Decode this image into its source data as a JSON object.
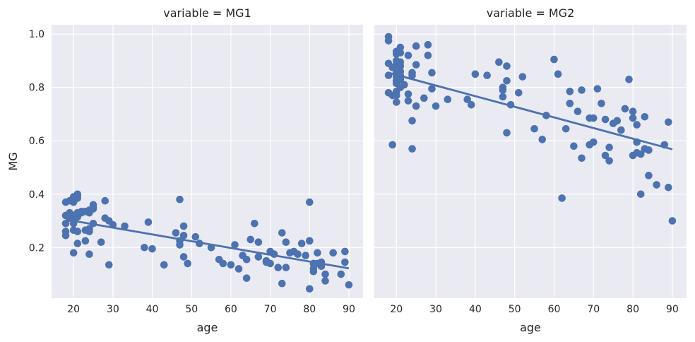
{
  "chart_data": {
    "type": "scatter",
    "ylabel": "MG",
    "xlim": [
      14.4,
      93.6
    ],
    "ylim": [
      0.01,
      1.035
    ],
    "grid": true,
    "color": "#4c72b0",
    "background": "#eaeaf2",
    "xticks": [
      20,
      30,
      40,
      50,
      60,
      70,
      80,
      90
    ],
    "yticks": [
      0.2,
      0.4,
      0.6,
      0.8,
      1.0
    ],
    "ytick_labels": [
      "0.2",
      "0.4",
      "0.6",
      "0.8",
      "1.0"
    ],
    "panels": [
      {
        "title": "variable = MG1",
        "xlabel": "age",
        "regression": [
          [
            18,
            0.305
          ],
          [
            90,
            0.122
          ]
        ],
        "points": [
          [
            18,
            0.37
          ],
          [
            18,
            0.32
          ],
          [
            18,
            0.29
          ],
          [
            18,
            0.26
          ],
          [
            18,
            0.245
          ],
          [
            19,
            0.33
          ],
          [
            19,
            0.31
          ],
          [
            19,
            0.375
          ],
          [
            20,
            0.39
          ],
          [
            20,
            0.37
          ],
          [
            20,
            0.32
          ],
          [
            20,
            0.3
          ],
          [
            20,
            0.29
          ],
          [
            20,
            0.265
          ],
          [
            20,
            0.18
          ],
          [
            21,
            0.4
          ],
          [
            21,
            0.395
          ],
          [
            21,
            0.385
          ],
          [
            21,
            0.33
          ],
          [
            21,
            0.315
          ],
          [
            21,
            0.26
          ],
          [
            21,
            0.215
          ],
          [
            22,
            0.335
          ],
          [
            22,
            0.33
          ],
          [
            23,
            0.335
          ],
          [
            23,
            0.265
          ],
          [
            23,
            0.225
          ],
          [
            24,
            0.34
          ],
          [
            24,
            0.33
          ],
          [
            24,
            0.27
          ],
          [
            24,
            0.26
          ],
          [
            24,
            0.175
          ],
          [
            25,
            0.36
          ],
          [
            25,
            0.35
          ],
          [
            25,
            0.345
          ],
          [
            25,
            0.29
          ],
          [
            27,
            0.22
          ],
          [
            28,
            0.375
          ],
          [
            28,
            0.31
          ],
          [
            29,
            0.3
          ],
          [
            29,
            0.135
          ],
          [
            30,
            0.285
          ],
          [
            33,
            0.28
          ],
          [
            38,
            0.2
          ],
          [
            39,
            0.295
          ],
          [
            40,
            0.195
          ],
          [
            43,
            0.135
          ],
          [
            46,
            0.255
          ],
          [
            47,
            0.38
          ],
          [
            47,
            0.225
          ],
          [
            47,
            0.21
          ],
          [
            48,
            0.28
          ],
          [
            48,
            0.245
          ],
          [
            48,
            0.165
          ],
          [
            49,
            0.14
          ],
          [
            51,
            0.24
          ],
          [
            52,
            0.215
          ],
          [
            55,
            0.2
          ],
          [
            57,
            0.155
          ],
          [
            58,
            0.14
          ],
          [
            60,
            0.135
          ],
          [
            61,
            0.21
          ],
          [
            62,
            0.12
          ],
          [
            63,
            0.17
          ],
          [
            64,
            0.155
          ],
          [
            64,
            0.085
          ],
          [
            65,
            0.23
          ],
          [
            66,
            0.29
          ],
          [
            67,
            0.22
          ],
          [
            67,
            0.165
          ],
          [
            69,
            0.15
          ],
          [
            69,
            0.145
          ],
          [
            70,
            0.185
          ],
          [
            70,
            0.14
          ],
          [
            71,
            0.175
          ],
          [
            72,
            0.125
          ],
          [
            73,
            0.255
          ],
          [
            73,
            0.065
          ],
          [
            74,
            0.22
          ],
          [
            74,
            0.125
          ],
          [
            75,
            0.18
          ],
          [
            76,
            0.185
          ],
          [
            77,
            0.175
          ],
          [
            78,
            0.215
          ],
          [
            79,
            0.17
          ],
          [
            80,
            0.37
          ],
          [
            80,
            0.225
          ],
          [
            80,
            0.045
          ],
          [
            81,
            0.14
          ],
          [
            81,
            0.12
          ],
          [
            81,
            0.11
          ],
          [
            82,
            0.18
          ],
          [
            82,
            0.14
          ],
          [
            83,
            0.145
          ],
          [
            83,
            0.13
          ],
          [
            84,
            0.1
          ],
          [
            84,
            0.075
          ],
          [
            86,
            0.18
          ],
          [
            88,
            0.1
          ],
          [
            89,
            0.185
          ],
          [
            89,
            0.145
          ],
          [
            90,
            0.06
          ]
        ]
      },
      {
        "title": "variable = MG2",
        "xlabel": "age",
        "regression": [
          [
            18,
            0.855
          ],
          [
            90,
            0.568
          ]
        ],
        "points": [
          [
            18,
            0.99
          ],
          [
            18,
            0.975
          ],
          [
            18,
            0.89
          ],
          [
            18,
            0.845
          ],
          [
            18,
            0.78
          ],
          [
            19,
            0.875
          ],
          [
            19,
            0.77
          ],
          [
            19,
            0.585
          ],
          [
            20,
            0.935
          ],
          [
            20,
            0.925
          ],
          [
            20,
            0.9
          ],
          [
            20,
            0.885
          ],
          [
            20,
            0.87
          ],
          [
            20,
            0.855
          ],
          [
            20,
            0.84
          ],
          [
            20,
            0.825
          ],
          [
            20,
            0.815
          ],
          [
            20,
            0.785
          ],
          [
            20,
            0.77
          ],
          [
            20,
            0.745
          ],
          [
            21,
            0.95
          ],
          [
            21,
            0.93
          ],
          [
            21,
            0.895
          ],
          [
            21,
            0.88
          ],
          [
            21,
            0.86
          ],
          [
            21,
            0.845
          ],
          [
            21,
            0.83
          ],
          [
            21,
            0.8
          ],
          [
            22,
            0.81
          ],
          [
            23,
            0.92
          ],
          [
            23,
            0.775
          ],
          [
            23,
            0.75
          ],
          [
            24,
            0.855
          ],
          [
            24,
            0.845
          ],
          [
            24,
            0.675
          ],
          [
            24,
            0.57
          ],
          [
            25,
            0.955
          ],
          [
            25,
            0.885
          ],
          [
            25,
            0.73
          ],
          [
            27,
            0.76
          ],
          [
            28,
            0.96
          ],
          [
            28,
            0.92
          ],
          [
            29,
            0.855
          ],
          [
            29,
            0.795
          ],
          [
            30,
            0.73
          ],
          [
            33,
            0.755
          ],
          [
            38,
            0.755
          ],
          [
            39,
            0.735
          ],
          [
            40,
            0.85
          ],
          [
            43,
            0.845
          ],
          [
            46,
            0.895
          ],
          [
            47,
            0.8
          ],
          [
            47,
            0.79
          ],
          [
            47,
            0.765
          ],
          [
            48,
            0.88
          ],
          [
            48,
            0.825
          ],
          [
            48,
            0.63
          ],
          [
            49,
            0.735
          ],
          [
            51,
            0.78
          ],
          [
            52,
            0.84
          ],
          [
            55,
            0.645
          ],
          [
            57,
            0.605
          ],
          [
            58,
            0.695
          ],
          [
            60,
            0.905
          ],
          [
            61,
            0.85
          ],
          [
            62,
            0.385
          ],
          [
            63,
            0.645
          ],
          [
            64,
            0.785
          ],
          [
            64,
            0.74
          ],
          [
            65,
            0.58
          ],
          [
            66,
            0.71
          ],
          [
            67,
            0.79
          ],
          [
            67,
            0.535
          ],
          [
            69,
            0.685
          ],
          [
            69,
            0.585
          ],
          [
            70,
            0.685
          ],
          [
            70,
            0.595
          ],
          [
            71,
            0.795
          ],
          [
            72,
            0.74
          ],
          [
            73,
            0.68
          ],
          [
            73,
            0.545
          ],
          [
            74,
            0.575
          ],
          [
            74,
            0.525
          ],
          [
            75,
            0.665
          ],
          [
            76,
            0.675
          ],
          [
            77,
            0.64
          ],
          [
            78,
            0.72
          ],
          [
            79,
            0.83
          ],
          [
            80,
            0.71
          ],
          [
            80,
            0.685
          ],
          [
            80,
            0.545
          ],
          [
            81,
            0.66
          ],
          [
            81,
            0.595
          ],
          [
            81,
            0.555
          ],
          [
            82,
            0.55
          ],
          [
            82,
            0.4
          ],
          [
            83,
            0.69
          ],
          [
            83,
            0.57
          ],
          [
            84,
            0.565
          ],
          [
            84,
            0.47
          ],
          [
            86,
            0.435
          ],
          [
            88,
            0.585
          ],
          [
            89,
            0.67
          ],
          [
            89,
            0.425
          ],
          [
            90,
            0.3
          ]
        ]
      }
    ]
  }
}
